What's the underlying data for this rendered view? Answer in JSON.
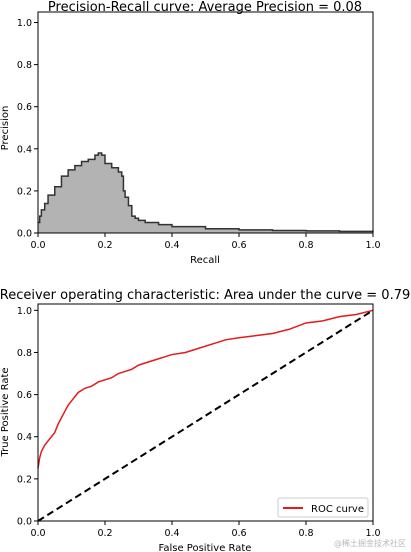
{
  "chart_data": [
    {
      "type": "area",
      "title": "Precision-Recall curve: Average Precision =          0.08",
      "xlabel": "Recall",
      "ylabel": "Precision",
      "xlim": [
        0.0,
        1.0
      ],
      "ylim": [
        0.0,
        1.05
      ],
      "xticks": [
        "0.0",
        "0.2",
        "0.4",
        "0.6",
        "0.8",
        "1.0"
      ],
      "yticks": [
        "0.0",
        "0.2",
        "0.4",
        "0.6",
        "0.8",
        "1.0"
      ],
      "grid": false,
      "fill_color": "#b3b3b3",
      "line_color": "#333333",
      "series": [
        {
          "x": [
            0.0,
            0.005,
            0.01,
            0.02,
            0.03,
            0.05,
            0.07,
            0.09,
            0.11,
            0.13,
            0.15,
            0.17,
            0.18,
            0.19,
            0.2,
            0.22,
            0.24,
            0.25,
            0.255,
            0.26,
            0.27,
            0.28,
            0.29,
            0.3,
            0.32,
            0.36,
            0.4,
            0.5,
            0.6,
            0.7,
            0.8,
            0.9,
            1.0
          ],
          "y": [
            0.05,
            0.08,
            0.11,
            0.14,
            0.18,
            0.22,
            0.27,
            0.3,
            0.32,
            0.34,
            0.35,
            0.37,
            0.38,
            0.37,
            0.33,
            0.31,
            0.29,
            0.27,
            0.2,
            0.17,
            0.13,
            0.08,
            0.07,
            0.06,
            0.05,
            0.04,
            0.03,
            0.02,
            0.015,
            0.012,
            0.01,
            0.008,
            0.007
          ]
        }
      ]
    },
    {
      "type": "line",
      "title": "Receiver operating characteristic: Area under the          curve = 0.79",
      "xlabel": "False Positive Rate",
      "ylabel": "True Positive Rate",
      "xlim": [
        0.0,
        1.0
      ],
      "ylim": [
        0.0,
        1.03
      ],
      "xticks": [
        "0.0",
        "0.2",
        "0.4",
        "0.6",
        "0.8",
        "1.0"
      ],
      "yticks": [
        "0.0",
        "0.2",
        "0.4",
        "0.6",
        "0.8",
        "1.0"
      ],
      "grid": false,
      "legend": {
        "placement": "lower-right",
        "entries": [
          "ROC curve"
        ]
      },
      "series": [
        {
          "name": "ROC curve",
          "color": "#e41a1c",
          "x": [
            0.0,
            0.005,
            0.01,
            0.02,
            0.03,
            0.04,
            0.05,
            0.06,
            0.07,
            0.08,
            0.09,
            0.1,
            0.12,
            0.14,
            0.16,
            0.18,
            0.2,
            0.22,
            0.24,
            0.26,
            0.28,
            0.3,
            0.32,
            0.34,
            0.36,
            0.38,
            0.4,
            0.44,
            0.48,
            0.52,
            0.56,
            0.6,
            0.65,
            0.7,
            0.75,
            0.8,
            0.85,
            0.9,
            0.95,
            1.0
          ],
          "y": [
            0.25,
            0.3,
            0.33,
            0.36,
            0.38,
            0.4,
            0.42,
            0.46,
            0.49,
            0.52,
            0.55,
            0.57,
            0.61,
            0.63,
            0.64,
            0.66,
            0.67,
            0.68,
            0.7,
            0.71,
            0.72,
            0.74,
            0.75,
            0.76,
            0.77,
            0.78,
            0.79,
            0.8,
            0.82,
            0.84,
            0.86,
            0.87,
            0.88,
            0.89,
            0.91,
            0.94,
            0.95,
            0.97,
            0.98,
            1.0
          ]
        },
        {
          "name": "",
          "color": "#000000",
          "dashed": true,
          "x": [
            0.0,
            1.0
          ],
          "y": [
            0.0,
            1.0
          ]
        }
      ]
    }
  ],
  "watermark": "@稀土掘金技术社区"
}
